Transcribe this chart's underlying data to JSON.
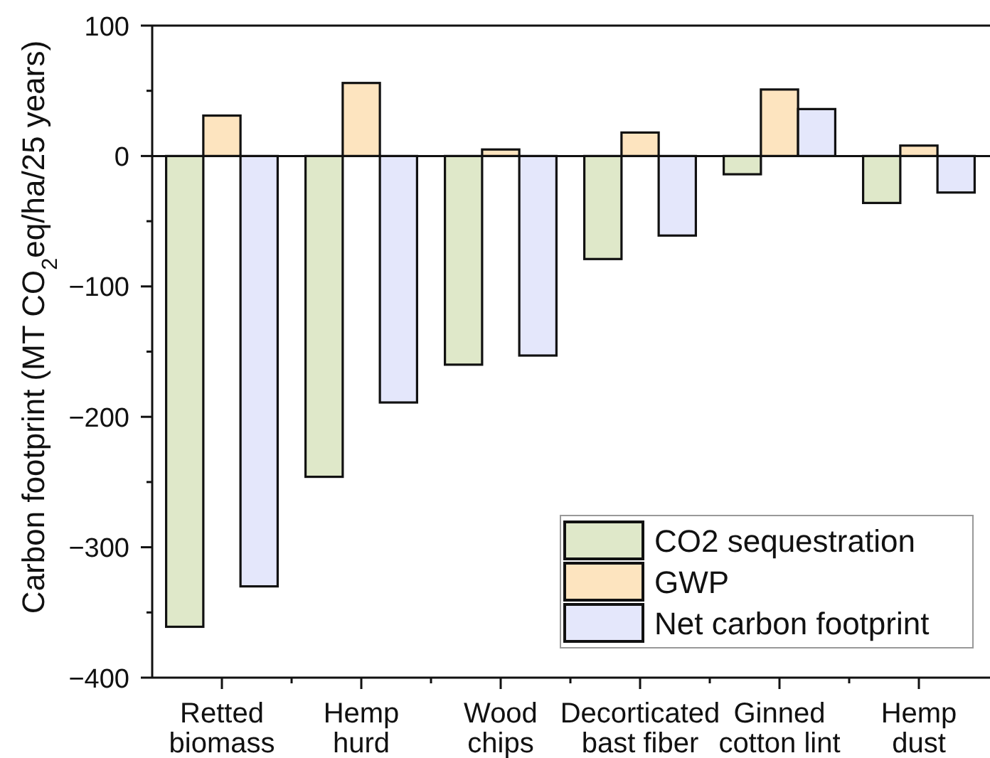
{
  "chart_data": {
    "type": "bar",
    "ylabel": "Carbon footprint (MT CO$_{2}$eq/ha/25 years)",
    "categories": [
      "Retted biomass",
      "Hemp hurd",
      "Wood chips",
      "Decorticated bast fiber",
      "Ginned cotton lint",
      "Hemp dust"
    ],
    "series": [
      {
        "name": "CO2 sequestration",
        "color": "#dfe8c9",
        "values": [
          -361,
          -246,
          -160,
          -79,
          -14,
          -36
        ]
      },
      {
        "name": "GWP",
        "color": "#fde4bf",
        "values": [
          31,
          56,
          5,
          18,
          51,
          8
        ]
      },
      {
        "name": "Net carbon footprint",
        "color": "#e4e7fb",
        "values": [
          -330,
          -189,
          -153,
          -61,
          36,
          -28
        ]
      }
    ],
    "ylim": [
      -400,
      100
    ],
    "yticks": [
      -400,
      {
        "value": -350,
        "label": null
      },
      -300,
      {
        "value": -250,
        "label": null
      },
      -200,
      {
        "value": -150,
        "label": null
      },
      -100,
      {
        "value": -50,
        "label": null
      },
      0,
      {
        "value": 50,
        "label": null
      },
      100
    ],
    "legend": "bottom right"
  }
}
